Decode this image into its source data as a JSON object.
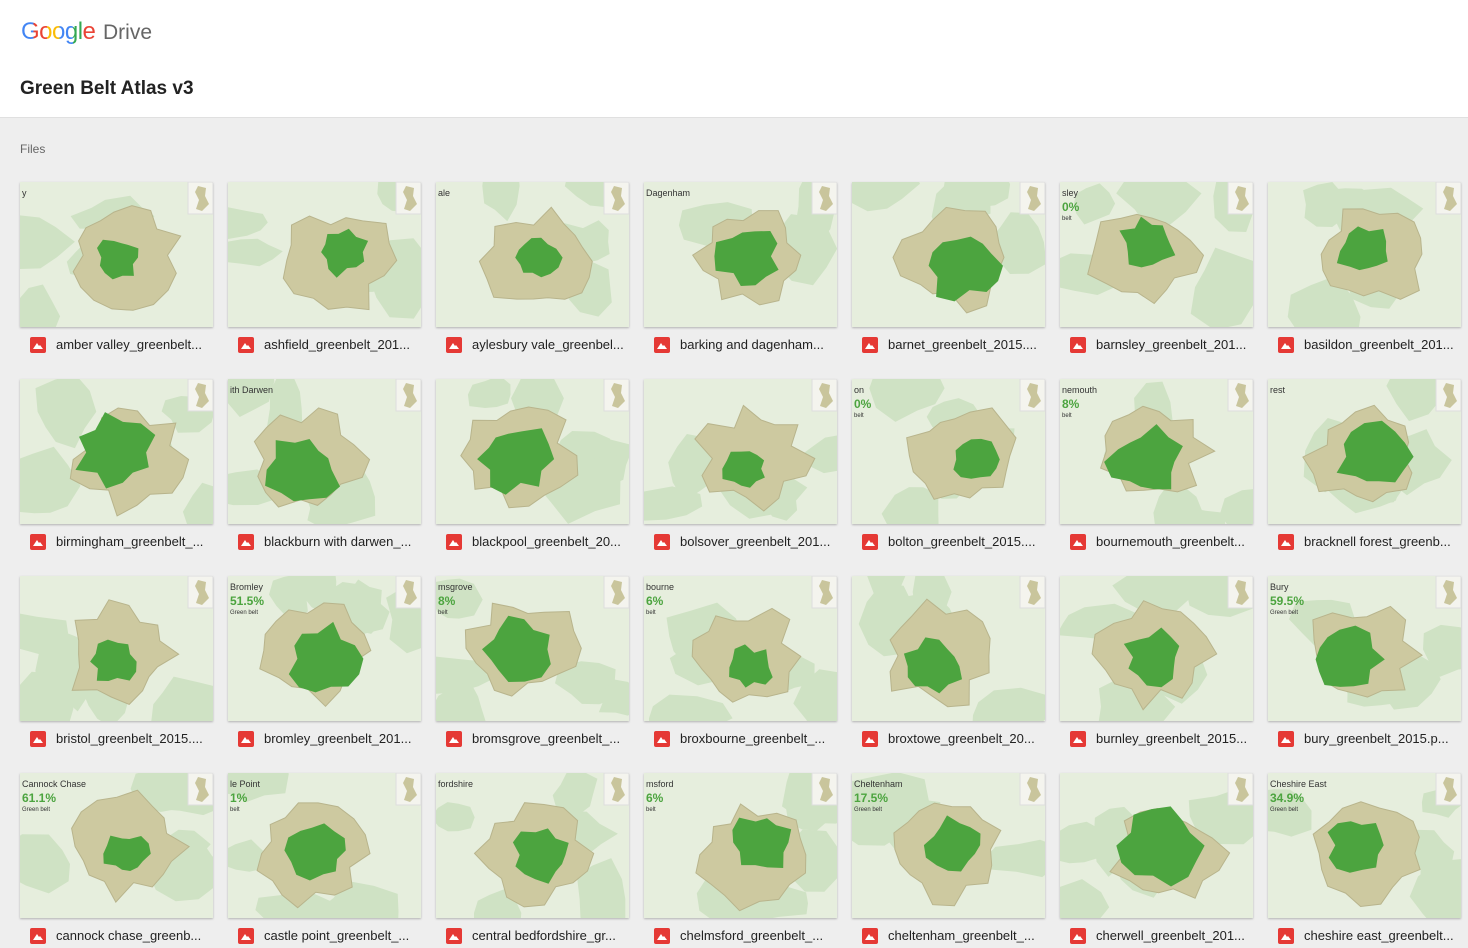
{
  "header": {
    "brand": "Google",
    "product": "Drive",
    "title": "Green Belt Atlas v3"
  },
  "section": "Files",
  "files": [
    {
      "name": "amber valley_greenbelt...",
      "overlay": {
        "place": "y"
      }
    },
    {
      "name": "ashfield_greenbelt_201..."
    },
    {
      "name": "aylesbury vale_greenbel...",
      "overlay": {
        "place": "ale"
      }
    },
    {
      "name": "barking and dagenham...",
      "overlay": {
        "place": "Dagenham"
      }
    },
    {
      "name": "barnet_greenbelt_2015...."
    },
    {
      "name": "barnsley_greenbelt_201...",
      "overlay": {
        "place": "sley",
        "pct": "0%",
        "note": "belt"
      }
    },
    {
      "name": "basildon_greenbelt_201..."
    },
    {
      "name": "birmingham_greenbelt_..."
    },
    {
      "name": "blackburn with darwen_...",
      "overlay": {
        "place": "ith Darwen"
      }
    },
    {
      "name": "blackpool_greenbelt_20..."
    },
    {
      "name": "bolsover_greenbelt_201..."
    },
    {
      "name": "bolton_greenbelt_2015....",
      "overlay": {
        "place": "on",
        "pct": "0%",
        "note": "belt"
      }
    },
    {
      "name": "bournemouth_greenbelt...",
      "overlay": {
        "place": "nemouth",
        "pct": "8%",
        "note": "belt"
      }
    },
    {
      "name": "bracknell forest_greenb...",
      "overlay": {
        "place": "rest"
      }
    },
    {
      "name": "bristol_greenbelt_2015...."
    },
    {
      "name": "bromley_greenbelt_201...",
      "overlay": {
        "place": "Bromley",
        "pct": "51.5%",
        "note": "Green belt"
      }
    },
    {
      "name": "bromsgrove_greenbelt_...",
      "overlay": {
        "place": "msgrove",
        "pct": "8%",
        "note": "belt"
      }
    },
    {
      "name": "broxbourne_greenbelt_...",
      "overlay": {
        "place": "bourne",
        "pct": "6%",
        "note": "belt"
      }
    },
    {
      "name": "broxtowe_greenbelt_20..."
    },
    {
      "name": "burnley_greenbelt_2015..."
    },
    {
      "name": "bury_greenbelt_2015.p...",
      "overlay": {
        "place": "Bury",
        "pct": "59.5%",
        "note": "Green belt"
      }
    },
    {
      "name": "cannock chase_greenb...",
      "overlay": {
        "place": "Cannock Chase",
        "pct": "61.1%",
        "note": "Green belt"
      }
    },
    {
      "name": "castle point_greenbelt_...",
      "overlay": {
        "place": "le Point",
        "pct": "1%",
        "note": "belt"
      }
    },
    {
      "name": "central bedfordshire_gr...",
      "overlay": {
        "place": "fordshire"
      }
    },
    {
      "name": "chelmsford_greenbelt_...",
      "overlay": {
        "place": "msford",
        "pct": "6%",
        "note": "belt"
      }
    },
    {
      "name": "cheltenham_greenbelt_...",
      "overlay": {
        "place": "Cheltenham",
        "pct": "17.5%",
        "note": "Green belt"
      }
    },
    {
      "name": "cherwell_greenbelt_201..."
    },
    {
      "name": "cheshire east_greenbelt...",
      "overlay": {
        "place": "Cheshire East",
        "pct": "34.9%",
        "note": "Green belt"
      }
    }
  ]
}
